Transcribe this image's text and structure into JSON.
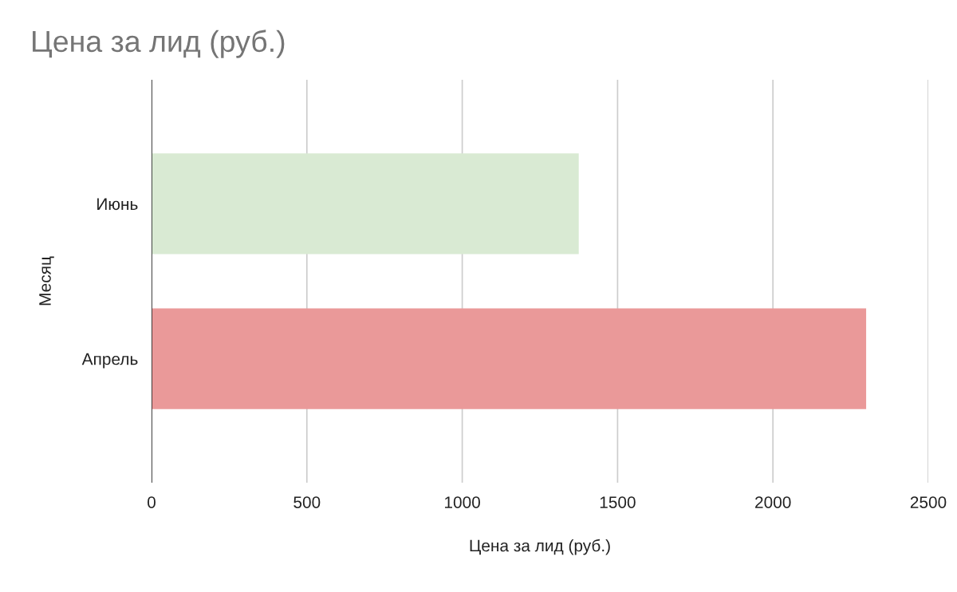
{
  "chart_data": {
    "type": "bar",
    "orientation": "horizontal",
    "title": "Цена за лид (руб.)",
    "xlabel": "Цена за лид (руб.)",
    "ylabel": "Месяц",
    "categories": [
      "Июнь",
      "Апрель"
    ],
    "values": [
      1375,
      2300
    ],
    "colors": [
      "#d9ead3",
      "#ea9999"
    ],
    "xlim": [
      0,
      2500
    ],
    "xticks": [
      0,
      500,
      1000,
      1500,
      2000,
      2500
    ],
    "grid": "x"
  }
}
